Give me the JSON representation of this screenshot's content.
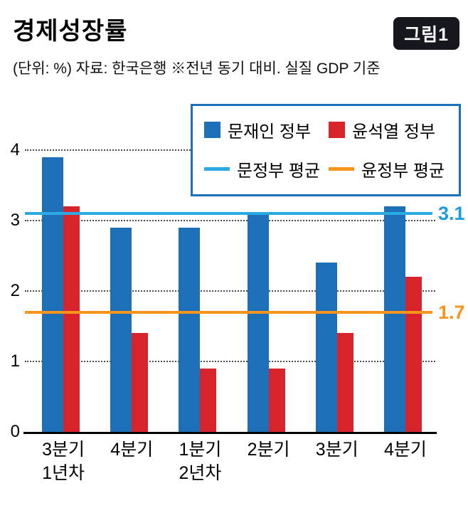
{
  "header": {
    "title": "경제성장률",
    "figure_badge": "그림1",
    "subtitle": "(단위: %) 자료: 한국은행 ※전년 동기 대비. 실질 GDP 기준"
  },
  "legend": {
    "border_color": "#1d6fb8",
    "items": [
      {
        "label": "문재인 정부",
        "type": "square",
        "color": "#1d6fb8"
      },
      {
        "label": "윤석열 정부",
        "type": "square",
        "color": "#d8232a"
      },
      {
        "label": "문정부 평균",
        "type": "line",
        "color": "#29abe2"
      },
      {
        "label": "윤정부 평균",
        "type": "line",
        "color": "#f7941d"
      }
    ]
  },
  "chart_data": {
    "type": "bar",
    "title": "경제성장률",
    "unit": "%",
    "source": "한국은행",
    "note": "전년 동기 대비. 실질 GDP 기준",
    "categories": [
      "3분기\n1년차",
      "4분기",
      "1분기\n2년차",
      "2분기",
      "3분기",
      "4분기"
    ],
    "series": [
      {
        "name": "문재인 정부",
        "color": "#1d6fb8",
        "values": [
          3.9,
          2.9,
          2.9,
          3.1,
          2.4,
          3.2
        ]
      },
      {
        "name": "윤석열 정부",
        "color": "#d8232a",
        "values": [
          3.2,
          1.4,
          0.9,
          0.9,
          1.4,
          2.2
        ]
      }
    ],
    "ref_lines": [
      {
        "name": "문정부 평균",
        "value": 3.1,
        "label": "3.1",
        "color": "#29abe2",
        "label_color": "#1e9cd7"
      },
      {
        "name": "윤정부 평균",
        "value": 1.7,
        "label": "1.7",
        "color": "#f7941d",
        "label_color": "#f7941d"
      }
    ],
    "ylim": [
      0,
      4
    ],
    "yticks": [
      0,
      1,
      2,
      3,
      4
    ],
    "grid": "dotted-horizontal",
    "legend_position": "top-right"
  }
}
